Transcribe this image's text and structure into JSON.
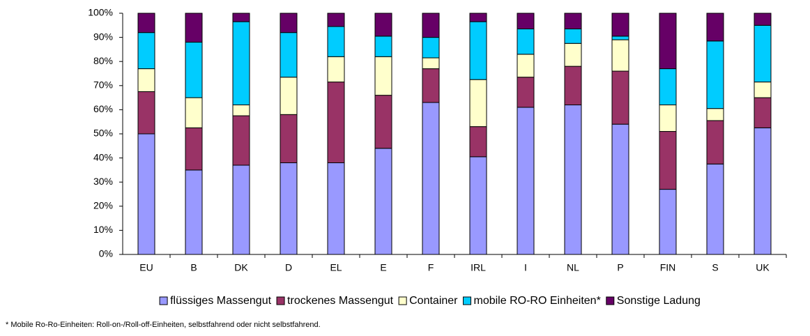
{
  "chart_data": {
    "type": "stacked_bar_100",
    "categories": [
      "EU",
      "B",
      "DK",
      "D",
      "EL",
      "E",
      "F",
      "IRL",
      "I",
      "NL",
      "P",
      "FIN",
      "S",
      "UK"
    ],
    "series": [
      {
        "name": "flüssiges Massengut",
        "color": "#9999ff",
        "values": [
          50,
          35,
          37,
          38,
          38,
          44,
          63,
          40.5,
          61,
          62,
          54,
          27,
          37.5,
          52.5
        ]
      },
      {
        "name": "trockenes Massengut",
        "color": "#993366",
        "values": [
          17.5,
          17.5,
          20.5,
          20,
          33.5,
          22,
          14,
          12.5,
          12.5,
          16,
          22,
          24,
          18,
          12.5
        ]
      },
      {
        "name": "Container",
        "color": "#ffffcc",
        "values": [
          9.5,
          12.5,
          4.5,
          15.5,
          10.5,
          16,
          4.5,
          19.5,
          9.5,
          9.5,
          13,
          11,
          5,
          6.5
        ]
      },
      {
        "name": "mobile RO-RO Einheiten*",
        "color": "#00ccff",
        "values": [
          15,
          23,
          34.5,
          18.5,
          12.5,
          8.5,
          8.5,
          24,
          10.5,
          6,
          1.5,
          15,
          28,
          23.5
        ]
      },
      {
        "name": "Sonstige Ladung",
        "color": "#660066",
        "values": [
          8,
          12,
          3.5,
          8,
          5.5,
          9.5,
          10,
          3.5,
          6.5,
          6.5,
          9.5,
          23,
          11.5,
          5
        ]
      }
    ],
    "ylim": [
      0,
      100
    ],
    "yticks": [
      {
        "value": 0,
        "label": "0%"
      },
      {
        "value": 10,
        "label": "10%"
      },
      {
        "value": 20,
        "label": "20%"
      },
      {
        "value": 30,
        "label": "30%"
      },
      {
        "value": 40,
        "label": "40%"
      },
      {
        "value": 50,
        "label": "50%"
      },
      {
        "value": 60,
        "label": "60%"
      },
      {
        "value": 70,
        "label": "70%"
      },
      {
        "value": 80,
        "label": "80%"
      },
      {
        "value": 90,
        "label": "90%"
      },
      {
        "value": 100,
        "label": "100%"
      }
    ],
    "grid": false,
    "legend": "bottom",
    "footnote": "* Mobile Ro-Ro-Einheiten: Roll-on-/Roll-off-Einheiten, selbstfahrend oder nicht selbstfahrend."
  }
}
